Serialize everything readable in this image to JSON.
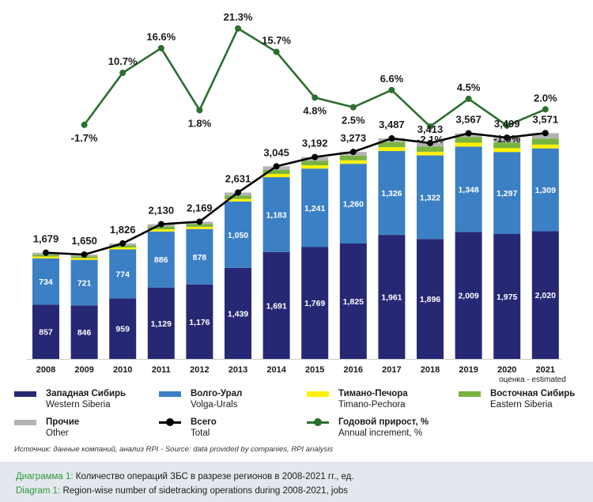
{
  "chart_data": {
    "type": "bar",
    "stacked": true,
    "categories": [
      "2008",
      "2009",
      "2010",
      "2011",
      "2012",
      "2013",
      "2014",
      "2015",
      "2016",
      "2017",
      "2018",
      "2019",
      "2020",
      "2021"
    ],
    "series": [
      {
        "name": "Западная Сибирь / Western Siberia",
        "color": "#272874",
        "values": [
          857,
          846,
          959,
          1129,
          1176,
          1439,
          1691,
          1769,
          1825,
          1961,
          1896,
          2009,
          1975,
          2020
        ],
        "labels": [
          "857",
          "846",
          "959",
          "1,129",
          "1,176",
          "1,439",
          "1,691",
          "1,769",
          "1,825",
          "1,961",
          "1,896",
          "2,009",
          "1,975",
          "2,020"
        ]
      },
      {
        "name": "Волго-Урал / Volga-Urals",
        "color": "#3b80c4",
        "values": [
          734,
          721,
          774,
          886,
          878,
          1050,
          1183,
          1241,
          1260,
          1326,
          1322,
          1348,
          1297,
          1309
        ],
        "labels": [
          "734",
          "721",
          "774",
          "886",
          "878",
          "1,050",
          "1,183",
          "1,241",
          "1,260",
          "1,326",
          "1,322",
          "1,348",
          "1,297",
          "1,309"
        ]
      },
      {
        "name": "Тимано-Печора / Timano-Pechora",
        "color": "#fff200",
        "values": [
          28,
          27,
          30,
          35,
          35,
          40,
          50,
          52,
          55,
          60,
          58,
          62,
          60,
          60
        ]
      },
      {
        "name": "Восточная Сибирь / Eastern Siberia",
        "color": "#78b340",
        "values": [
          30,
          28,
          33,
          45,
          45,
          52,
          65,
          70,
          75,
          80,
          80,
          90,
          90,
          95
        ]
      },
      {
        "name": "Прочие / Other",
        "color": "#b3b3b3",
        "values": [
          30,
          28,
          30,
          35,
          35,
          50,
          56,
          60,
          58,
          60,
          57,
          58,
          77,
          87
        ]
      }
    ],
    "totals": [
      1679,
      1650,
      1826,
      2130,
      2169,
      2631,
      3045,
      3192,
      3273,
      3487,
      3413,
      3567,
      3499,
      3571
    ],
    "total_labels": [
      "1,679",
      "1,650",
      "1,826",
      "2,130",
      "2,169",
      "2,631",
      "3,045",
      "3,192",
      "3,273",
      "3,487",
      "3,413",
      "3,567",
      "3,499",
      "3,571"
    ],
    "total_series_name": "Всего / Total",
    "total_color": "#000000",
    "annual_increment": [
      null,
      -1.7,
      10.7,
      16.6,
      1.8,
      21.3,
      15.7,
      4.8,
      2.5,
      6.6,
      -2.1,
      4.5,
      -1.9,
      2.0
    ],
    "increment_labels": [
      "",
      "-1.7%",
      "10.7%",
      "16.6%",
      "1.8%",
      "21.3%",
      "15.7%",
      "4.8%",
      "2.5%",
      "6.6%",
      "-2.1%",
      "4.5%",
      "-1.9%",
      "2.0%"
    ],
    "increment_series_name": "Годовой прирост, % / Annual increment, %",
    "increment_color": "#2c6e2e",
    "estimated_note": "оценка - estimated",
    "ylim": [
      0,
      3700
    ]
  },
  "legend": [
    {
      "ru": "Западная Сибирь",
      "en": "Western Siberia",
      "color": "#272874",
      "kind": "bar"
    },
    {
      "ru": "Волго-Урал",
      "en": "Volga-Urals",
      "color": "#3b80c4",
      "kind": "bar"
    },
    {
      "ru": "Тимано-Печора",
      "en": "Timano-Pechora",
      "color": "#fff200",
      "kind": "bar"
    },
    {
      "ru": "Восточная Сибирь",
      "en": "Eastern Siberia",
      "color": "#78b340",
      "kind": "bar"
    },
    {
      "ru": "Прочие",
      "en": "Other",
      "color": "#b3b3b3",
      "kind": "bar"
    },
    {
      "ru": "Всего",
      "en": "Total",
      "color": "#000000",
      "kind": "line"
    },
    {
      "ru": "Годовой прирост, %",
      "en": "Annual increment, %",
      "color": "#2c6e2e",
      "kind": "line"
    }
  ],
  "source": "Источник: данные компаний, анализ RPI - Source: data provided by companies, RPI analysis",
  "caption": {
    "ru_label": "Диаграмма 1:",
    "ru_text": " Количество операций ЗБС в разрезе регионов в 2008-2021 гг., ед.",
    "en_label": "Diagram 1:",
    "en_text": " Region-wise number of sidetracking operations during 2008-2021, jobs"
  }
}
